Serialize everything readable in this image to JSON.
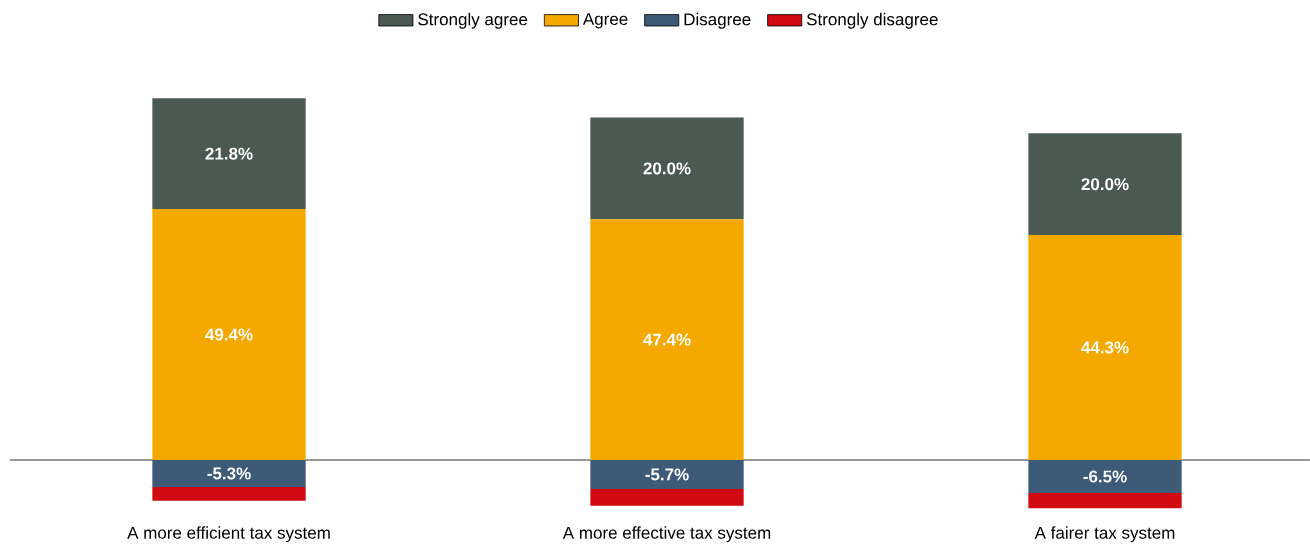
{
  "chart_data": {
    "type": "bar",
    "stacked": true,
    "categories": [
      "A more efficient tax system",
      "A more effective tax system",
      "A fairer tax system"
    ],
    "series": [
      {
        "name": "Agree",
        "color": "#f5a800",
        "values": [
          49.4,
          47.4,
          44.3
        ],
        "value_labels": [
          "49.4%",
          "47.4%",
          "44.3%"
        ]
      },
      {
        "name": "Strongly agree",
        "color": "#4a5a52",
        "values": [
          21.8,
          20.0,
          20.0
        ],
        "value_labels": [
          "21.8%",
          "20.0%",
          "20.0%"
        ]
      },
      {
        "name": "Disagree",
        "color": "#3d5a78",
        "values": [
          -5.3,
          -5.7,
          -6.5
        ],
        "value_labels": [
          "-5.3%",
          "-5.7%",
          "-6.5%"
        ]
      },
      {
        "name": "Strongly disagree",
        "color": "#d10a11",
        "values": [
          -2.7,
          -3.3,
          -3.0
        ]
      }
    ],
    "legend": "top"
  }
}
